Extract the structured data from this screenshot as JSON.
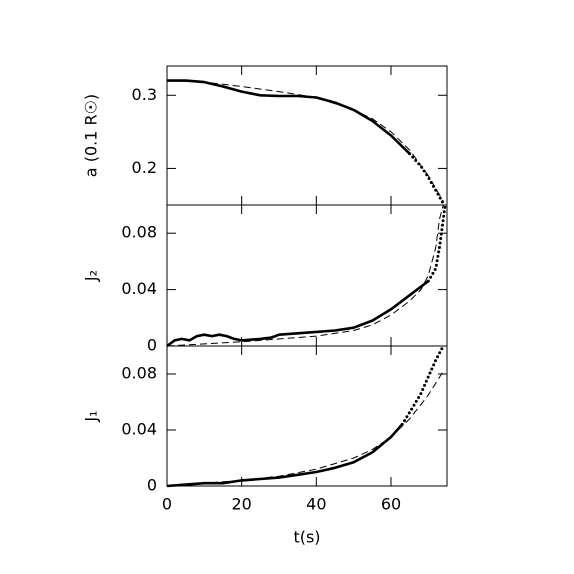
{
  "chart_data": [
    {
      "type": "line",
      "ylabel": "a (0.1 R☉)",
      "xlim": [
        0,
        75
      ],
      "xticks": [
        0,
        20,
        40,
        60
      ],
      "ylim": [
        0.15,
        0.34
      ],
      "yticks": [
        0.2,
        0.3
      ],
      "series": [
        {
          "style": "solid",
          "color": "#000000",
          "x": [
            0,
            5,
            10,
            15,
            20,
            25,
            30,
            35,
            40,
            45,
            50,
            55,
            60,
            65
          ],
          "values": [
            0.32,
            0.32,
            0.318,
            0.312,
            0.305,
            0.3,
            0.299,
            0.299,
            0.297,
            0.29,
            0.28,
            0.265,
            0.245,
            0.22
          ]
        },
        {
          "style": "dotted",
          "color": "#000000",
          "x": [
            65,
            68,
            70,
            72,
            74
          ],
          "values": [
            0.22,
            0.203,
            0.188,
            0.17,
            0.152
          ]
        },
        {
          "style": "dashed",
          "color": "#000000",
          "x": [
            0,
            10,
            20,
            30,
            40,
            50,
            55,
            60,
            65,
            70,
            74
          ],
          "values": [
            0.32,
            0.318,
            0.312,
            0.305,
            0.297,
            0.28,
            0.268,
            0.25,
            0.225,
            0.19,
            0.155
          ]
        }
      ]
    },
    {
      "type": "line",
      "ylabel": "J₂",
      "xlim": [
        0,
        75
      ],
      "xticks": [
        0,
        20,
        40,
        60
      ],
      "ylim": [
        0,
        0.1
      ],
      "yticks": [
        0,
        0.04,
        0.08
      ],
      "series": [
        {
          "style": "solid",
          "color": "#000000",
          "x": [
            0,
            2,
            4,
            6,
            8,
            10,
            12,
            14,
            16,
            18,
            20,
            25,
            28,
            30,
            35,
            40,
            45,
            50,
            55,
            60,
            65,
            70
          ],
          "values": [
            0,
            0.004,
            0.005,
            0.004,
            0.007,
            0.008,
            0.007,
            0.008,
            0.007,
            0.005,
            0.004,
            0.005,
            0.006,
            0.008,
            0.009,
            0.01,
            0.011,
            0.013,
            0.018,
            0.026,
            0.036,
            0.046
          ]
        },
        {
          "style": "dotted",
          "color": "#000000",
          "x": [
            70,
            72,
            73,
            74,
            74.5
          ],
          "values": [
            0.046,
            0.055,
            0.07,
            0.09,
            0.1
          ]
        },
        {
          "style": "dashed",
          "color": "#000000",
          "x": [
            0,
            20,
            40,
            50,
            55,
            60,
            65,
            68,
            70,
            72,
            73,
            74
          ],
          "values": [
            0,
            0.003,
            0.007,
            0.011,
            0.015,
            0.022,
            0.032,
            0.04,
            0.05,
            0.07,
            0.09,
            0.1
          ]
        }
      ]
    },
    {
      "type": "line",
      "ylabel": "J₁",
      "xlabel": "t(s)",
      "xlim": [
        0,
        75
      ],
      "xticks": [
        0,
        20,
        40,
        60
      ],
      "ylim": [
        0,
        0.1
      ],
      "yticks": [
        0,
        0.04,
        0.08
      ],
      "series": [
        {
          "style": "solid",
          "color": "#000000",
          "x": [
            0,
            5,
            10,
            15,
            20,
            25,
            30,
            35,
            40,
            45,
            50,
            55,
            60,
            63
          ],
          "values": [
            0,
            0.001,
            0.002,
            0.002,
            0.004,
            0.005,
            0.006,
            0.008,
            0.01,
            0.013,
            0.017,
            0.024,
            0.035,
            0.044
          ]
        },
        {
          "style": "dotted",
          "color": "#000000",
          "x": [
            63,
            66,
            68,
            70,
            72,
            74
          ],
          "values": [
            0.044,
            0.057,
            0.066,
            0.078,
            0.09,
            0.1
          ]
        },
        {
          "style": "dashed",
          "color": "#000000",
          "x": [
            0,
            10,
            20,
            30,
            40,
            50,
            55,
            60,
            65,
            70,
            74
          ],
          "values": [
            0,
            0.002,
            0.004,
            0.007,
            0.012,
            0.02,
            0.026,
            0.035,
            0.048,
            0.065,
            0.082
          ]
        }
      ]
    }
  ]
}
